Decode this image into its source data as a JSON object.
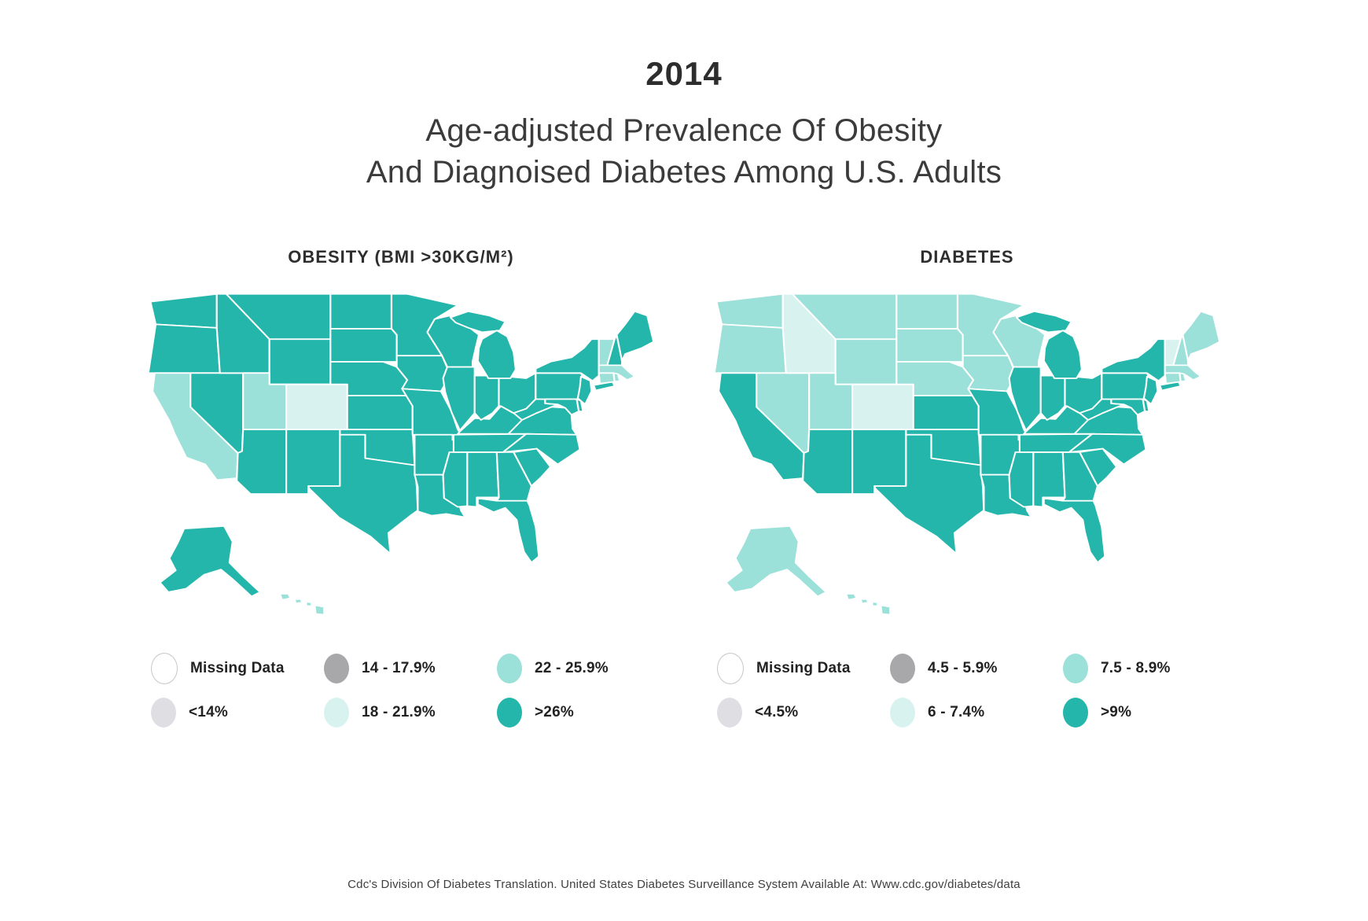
{
  "page": {
    "year": "2014",
    "title_line1": "Age-adjusted Prevalence Of Obesity",
    "title_line2": "And Diagnoised Diabetes Among U.S. Adults",
    "footer": "Cdc's Division Of Diabetes Translation. United States Diabetes Surveillance System Available At: Www.cdc.gov/diabetes/data"
  },
  "colors": {
    "missing": "#ffffff",
    "missing_border": "#c7c7cb",
    "band1": "#dfdfe3",
    "band2": "#a8a8ab",
    "band3": "#d7f2ef",
    "band4": "#9be0d9",
    "band5": "#24b6ab",
    "state_border": "#ffffff"
  },
  "chart_data": [
    {
      "type": "choropleth-map",
      "title": "OBESITY (BMI >30KG/M²)",
      "legend": [
        {
          "band": "missing",
          "label": "Missing Data"
        },
        {
          "band": "band1",
          "label": "<14%"
        },
        {
          "band": "band2",
          "label": "14 - 17.9%"
        },
        {
          "band": "band3",
          "label": "18 - 21.9%"
        },
        {
          "band": "band4",
          "label": "22 - 25.9%"
        },
        {
          "band": "band5",
          "label": ">26%"
        }
      ],
      "state_bands": {
        "WA": "band5",
        "OR": "band5",
        "CA": "band4",
        "NV": "band5",
        "ID": "band5",
        "MT": "band5",
        "WY": "band5",
        "UT": "band4",
        "CO": "band3",
        "AZ": "band5",
        "NM": "band5",
        "ND": "band5",
        "SD": "band5",
        "NE": "band5",
        "KS": "band5",
        "OK": "band5",
        "TX": "band5",
        "MN": "band5",
        "IA": "band5",
        "MO": "band5",
        "AR": "band5",
        "LA": "band5",
        "WI": "band5",
        "IL": "band5",
        "MS": "band5",
        "AL": "band5",
        "GA": "band5",
        "FL": "band5",
        "TN": "band5",
        "KY": "band5",
        "IN": "band5",
        "OH": "band5",
        "MI": "band5",
        "WV": "band5",
        "VA": "band5",
        "NC": "band5",
        "SC": "band5",
        "PA": "band5",
        "NY": "band5",
        "MD": "band5",
        "DE": "band5",
        "NJ": "band5",
        "VT": "band4",
        "NH": "band5",
        "ME": "band5",
        "MA": "band4",
        "CT": "band4",
        "RI": "band4",
        "AK": "band5",
        "HI": "band4"
      }
    },
    {
      "type": "choropleth-map",
      "title": "DIABETES",
      "legend": [
        {
          "band": "missing",
          "label": "Missing Data"
        },
        {
          "band": "band1",
          "label": "<4.5%"
        },
        {
          "band": "band2",
          "label": "4.5 - 5.9%"
        },
        {
          "band": "band3",
          "label": "6 - 7.4%"
        },
        {
          "band": "band4",
          "label": "7.5 - 8.9%"
        },
        {
          "band": "band5",
          "label": ">9%"
        }
      ],
      "state_bands": {
        "WA": "band4",
        "OR": "band4",
        "CA": "band5",
        "NV": "band4",
        "ID": "band3",
        "MT": "band4",
        "WY": "band4",
        "UT": "band4",
        "CO": "band3",
        "AZ": "band5",
        "NM": "band5",
        "ND": "band4",
        "SD": "band4",
        "NE": "band4",
        "KS": "band5",
        "OK": "band5",
        "TX": "band5",
        "MN": "band4",
        "IA": "band4",
        "MO": "band5",
        "AR": "band5",
        "LA": "band5",
        "WI": "band4",
        "IL": "band5",
        "MS": "band5",
        "AL": "band5",
        "GA": "band5",
        "FL": "band5",
        "TN": "band5",
        "KY": "band5",
        "IN": "band5",
        "OH": "band5",
        "MI": "band5",
        "WV": "band5",
        "VA": "band5",
        "NC": "band5",
        "SC": "band5",
        "PA": "band5",
        "NY": "band5",
        "MD": "band5",
        "DE": "band5",
        "NJ": "band5",
        "VT": "band3",
        "NH": "band4",
        "ME": "band4",
        "MA": "band4",
        "CT": "band4",
        "RI": "band4",
        "AK": "band4",
        "HI": "band4"
      }
    }
  ]
}
